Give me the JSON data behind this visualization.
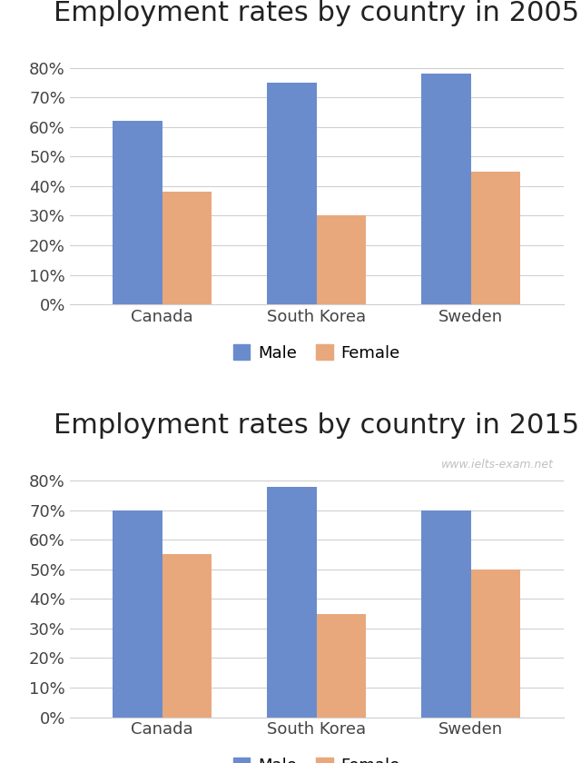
{
  "chart2005": {
    "title": "Employment rates by country in 2005",
    "categories": [
      "Canada",
      "South Korea",
      "Sweden"
    ],
    "male": [
      0.62,
      0.75,
      0.78
    ],
    "female": [
      0.38,
      0.3,
      0.45
    ]
  },
  "chart2015": {
    "title": "Employment rates by country in 2015",
    "categories": [
      "Canada",
      "South Korea",
      "Sweden"
    ],
    "male": [
      0.7,
      0.78,
      0.7
    ],
    "female": [
      0.55,
      0.35,
      0.5
    ],
    "watermark": "www.ielts-exam.net"
  },
  "male_color": "#6b8ccc",
  "female_color": "#e8a87c",
  "bar_width": 0.32,
  "ylim": [
    0,
    0.9
  ],
  "yticks": [
    0.0,
    0.1,
    0.2,
    0.3,
    0.4,
    0.5,
    0.6,
    0.7,
    0.8
  ],
  "title_fontsize": 22,
  "tick_fontsize": 13,
  "legend_fontsize": 13,
  "background_color": "#ffffff",
  "grid_color": "#d0d0d0"
}
